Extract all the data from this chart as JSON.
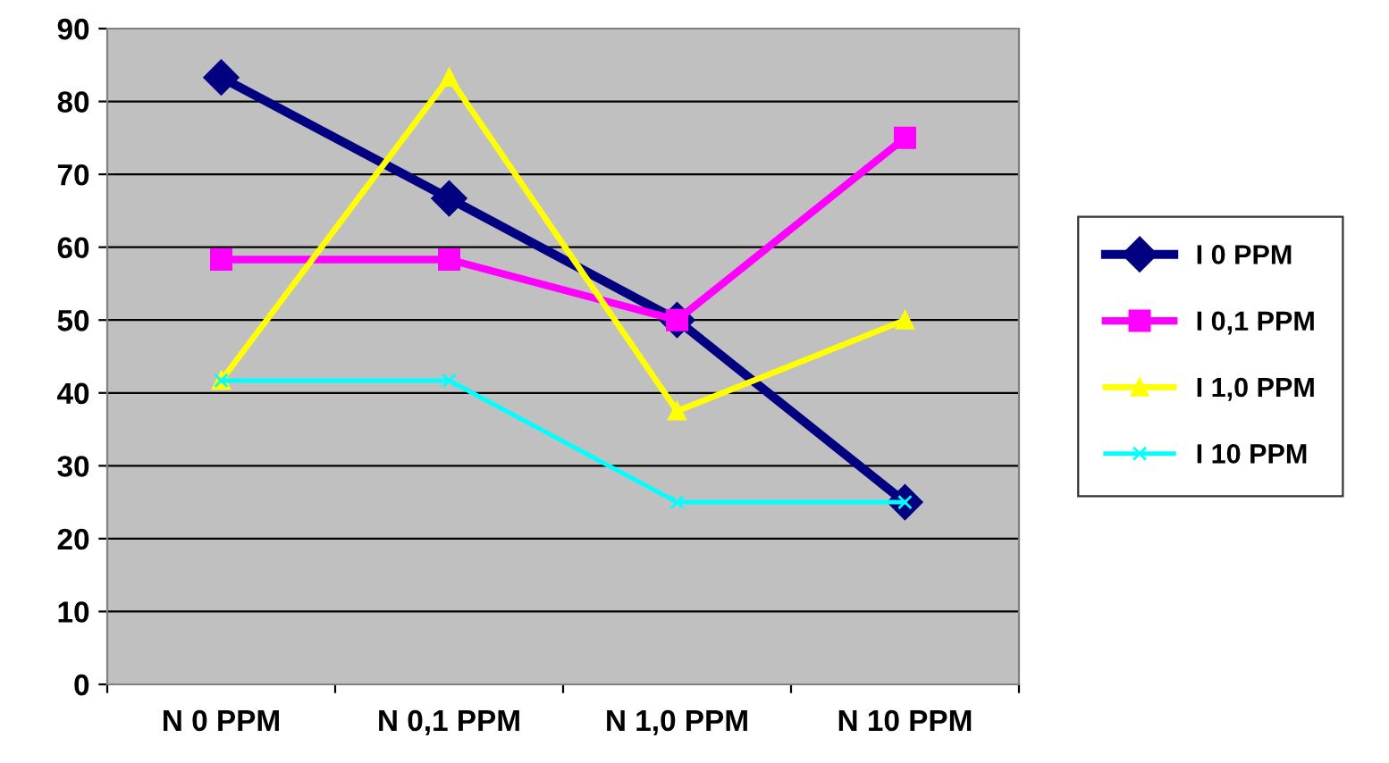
{
  "chart_data": {
    "type": "line",
    "categories": [
      "N 0 PPM",
      "N 0,1 PPM",
      "N 1,0 PPM",
      "N 10 PPM"
    ],
    "series": [
      {
        "name": "I 0 PPM",
        "color": "#000080",
        "marker": "diamond",
        "values": [
          83.3,
          66.7,
          50,
          25
        ]
      },
      {
        "name": "I 0,1 PPM",
        "color": "#ff00ff",
        "marker": "square",
        "values": [
          58.3,
          58.3,
          50,
          75
        ]
      },
      {
        "name": "I 1,0 PPM",
        "color": "#ffff00",
        "marker": "triangle",
        "values": [
          41.7,
          83.3,
          37.5,
          50
        ]
      },
      {
        "name": "I 10 PPM",
        "color": "#00ffff",
        "marker": "cross",
        "values": [
          41.7,
          41.7,
          25,
          25
        ]
      }
    ],
    "ylim": [
      0,
      90
    ],
    "yticks": [
      0,
      10,
      20,
      30,
      40,
      50,
      60,
      70,
      80,
      90
    ],
    "grid": "y",
    "legend": "right"
  }
}
